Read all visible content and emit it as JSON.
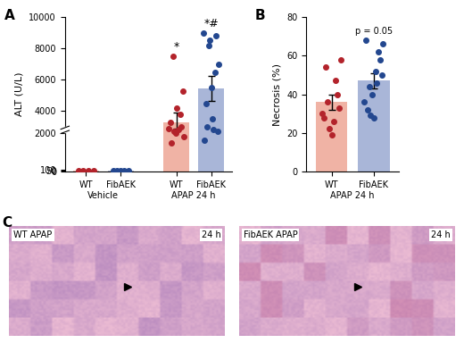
{
  "chart_data": [
    {
      "type": "bar",
      "title": "A",
      "y_label": "ALT (U/L)",
      "categories": [
        "Vehicle",
        "APAP 24 h"
      ],
      "ylim": [
        0,
        10000
      ],
      "yticks": [
        0,
        50,
        100,
        2000,
        4000,
        6000,
        8000,
        10000
      ],
      "series": [
        {
          "name": "WT",
          "color": "#f0b3a5",
          "point_color": "#b3232b",
          "values": [
            30,
            3300
          ],
          "errors": [
            4,
            600
          ],
          "points": [
            [
              25,
              28,
              32,
              36
            ],
            [
              7500,
              5300,
              4200,
              3800,
              3300,
              3000,
              2700,
              2500,
              2200,
              2000,
              1800,
              1500
            ]
          ]
        },
        {
          "name": "FibAEK",
          "color": "#a9b6d8",
          "point_color": "#23478f",
          "values": [
            46,
            5450
          ],
          "errors": [
            7,
            800
          ],
          "points": [
            [
              32,
              38,
              45,
              50,
              68
            ],
            [
              9000,
              8800,
              8500,
              8200,
              7000,
              6500,
              5500,
              4500,
              3500,
              3000,
              2500,
              2200,
              1600
            ]
          ]
        }
      ],
      "annotations": [
        {
          "category": "APAP 24 h",
          "series": "WT",
          "text": "*"
        },
        {
          "category": "APAP 24 h",
          "series": "FibAEK",
          "text": "*#"
        }
      ]
    },
    {
      "type": "bar",
      "title": "B",
      "y_label": "Necrosis (%)",
      "group_label": "APAP 24 h",
      "categories": [
        "WT",
        "FibAEK"
      ],
      "colors": [
        "#f0b3a5",
        "#a9b6d8"
      ],
      "point_colors": [
        "#b3232b",
        "#23478f"
      ],
      "values": [
        36,
        47
      ],
      "errors": [
        4,
        4
      ],
      "points": [
        [
          58,
          54,
          47,
          40,
          36,
          33,
          30,
          28,
          26,
          22,
          19
        ],
        [
          68,
          66,
          62,
          58,
          52,
          50,
          46,
          44,
          40,
          36,
          32,
          28,
          29
        ]
      ],
      "ylim": [
        0,
        80
      ],
      "yticks": [
        0,
        20,
        40,
        60,
        80
      ],
      "annotations": [
        {
          "category": "FibAEK",
          "text": "p = 0.05"
        }
      ]
    }
  ],
  "images": {
    "title": "C",
    "panels": [
      {
        "label": "WT APAP",
        "time": "24 h"
      },
      {
        "label": "FibAEK APAP",
        "time": "24 h"
      }
    ]
  }
}
